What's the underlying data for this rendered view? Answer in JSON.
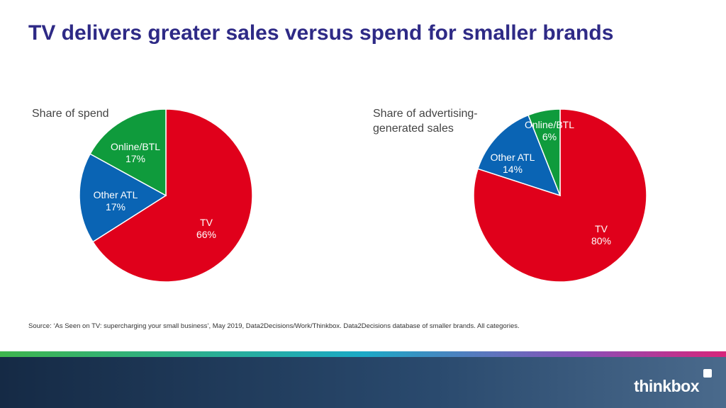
{
  "title": "TV delivers greater sales versus spend for smaller brands",
  "chart_data": [
    {
      "type": "pie",
      "title": "Share of spend",
      "slices": [
        {
          "label": "TV",
          "value": 66,
          "value_label": "66%",
          "color": "#e0001b"
        },
        {
          "label": "Other ATL",
          "value": 17,
          "value_label": "17%",
          "color": "#0a64b4"
        },
        {
          "label": "Online/BTL",
          "value": 17,
          "value_label": "17%",
          "color": "#0f9b3c"
        }
      ]
    },
    {
      "type": "pie",
      "title": "Share of advertising-generated sales",
      "title_lines": [
        "Share of advertising-",
        "generated sales"
      ],
      "slices": [
        {
          "label": "TV",
          "value": 80,
          "value_label": "80%",
          "color": "#e0001b"
        },
        {
          "label": "Other ATL",
          "value": 14,
          "value_label": "14%",
          "color": "#0a64b4"
        },
        {
          "label": "Online/BTL",
          "value": 6,
          "value_label": "6%",
          "color": "#0f9b3c"
        }
      ]
    }
  ],
  "source": "Source: ‘As Seen on TV: supercharging your small business’, May 2019, Data2Decisions/Work/Thinkbox. Data2Decisions database of smaller brands. All categories.",
  "brand": {
    "name": "thinkbox",
    "logo_color": "#ffffff"
  }
}
